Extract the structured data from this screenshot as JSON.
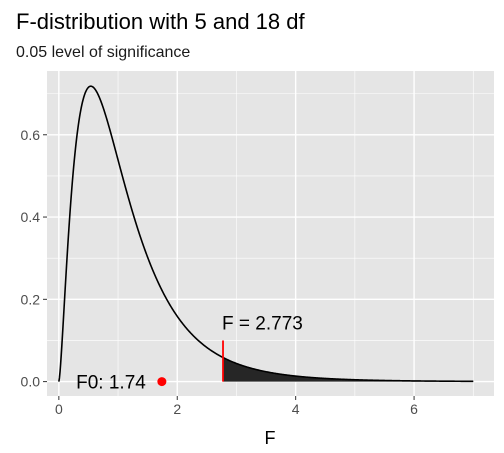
{
  "chart_data": {
    "type": "line",
    "title": "F-distribution with 5 and 18 df",
    "subtitle": "0.05 level of significance",
    "xlabel": "F",
    "ylabel": "",
    "xlim": [
      -0.2,
      7.35
    ],
    "ylim": [
      -0.035,
      0.755
    ],
    "x_ticks": [
      0,
      2,
      4,
      6
    ],
    "x_tick_labels": [
      "0",
      "2",
      "4",
      "6"
    ],
    "y_ticks": [
      0.0,
      0.2,
      0.4,
      0.6
    ],
    "y_tick_labels": [
      "0.0",
      "0.2",
      "0.4",
      "0.6"
    ],
    "series": [
      {
        "df1": 5,
        "df2": 18,
        "x_range": [
          0,
          7
        ],
        "color": "#000000"
      }
    ],
    "critical_value": {
      "x": 2.773,
      "label": "F = 2.773",
      "color": "#ff0000",
      "shade_color": "#262626"
    },
    "observed": {
      "x": 1.74,
      "y": 0,
      "label": "F0: 1.74",
      "color": "#ff0000"
    },
    "grid": true,
    "background": "#e5e5e5",
    "grid_color": "#ffffff"
  }
}
